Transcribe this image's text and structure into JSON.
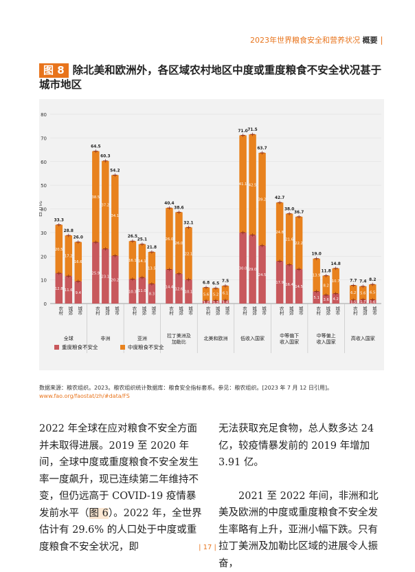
{
  "header": {
    "title": "2023年世界粮食安全和营养状况",
    "section": "概要"
  },
  "figure": {
    "badge": "图 8",
    "title": "除北美和欧洲外，各区域农村地区中度或重度粮食不安全状况甚于城市地区"
  },
  "colors": {
    "severe": "#c8585c",
    "moderate": "#e8821e",
    "total_marker": "#8b2c1a",
    "accent": "#e8741c"
  },
  "chart_data": {
    "type": "bar",
    "stacked": true,
    "ylabel": "百分比",
    "ylim": [
      0,
      80
    ],
    "yticks": [
      0,
      10,
      20,
      30,
      40,
      50,
      60,
      70,
      80
    ],
    "grid": true,
    "subcategories": [
      "农村",
      "城郊",
      "城市"
    ],
    "groups": [
      {
        "name": "全球",
        "severe": [
          12.8,
          11.6,
          9.4
        ],
        "moderate": [
          20.5,
          17.2,
          16.6
        ],
        "total": [
          33.3,
          28.8,
          26.0
        ]
      },
      {
        "name": "非洲",
        "severe": [
          25.9,
          23.1,
          20.2
        ],
        "moderate": [
          38.5,
          37.2,
          34.1
        ],
        "total": [
          64.5,
          60.3,
          54.2
        ]
      },
      {
        "name": "亚洲",
        "severe": [
          10.3,
          11.0,
          8.3
        ],
        "moderate": [
          16.1,
          14.1,
          13.5
        ],
        "total": [
          26.5,
          25.1,
          21.8
        ]
      },
      {
        "name": "拉丁美洲及加勒比",
        "severe": [
          14.4,
          12.6,
          10.1
        ],
        "moderate": [
          26.0,
          26.0,
          22.1
        ],
        "total": [
          40.4,
          38.6,
          32.1
        ]
      },
      {
        "name": "北美和欧洲",
        "severe": [
          1.2,
          1.3,
          1.4
        ],
        "moderate": [
          5.6,
          5.2,
          6.1
        ],
        "total": [
          6.8,
          6.5,
          7.5
        ]
      },
      {
        "name": "低收入国家",
        "severe": [
          30.0,
          29.0,
          24.5
        ],
        "moderate": [
          41.1,
          42.5,
          39.2
        ],
        "total": [
          71.0,
          71.5,
          63.7
        ]
      },
      {
        "name": "中等偏下收入国家",
        "severe": [
          17.9,
          16.4,
          14.5
        ],
        "moderate": [
          24.8,
          21.6,
          22.2
        ],
        "total": [
          42.7,
          38.0,
          36.7
        ]
      },
      {
        "name": "中等偏上收入国家",
        "severe": [
          5.1,
          3.6,
          4.2
        ],
        "moderate": [
          13.9,
          8.2,
          10.7
        ],
        "total": [
          19.0,
          11.8,
          14.8
        ]
      },
      {
        "name": "高收入国家",
        "severe": [
          1.5,
          1.7,
          1.6
        ],
        "moderate": [
          6.2,
          5.6,
          6.5
        ],
        "total": [
          7.7,
          7.4,
          8.2
        ]
      }
    ],
    "legend": {
      "position": "bottom-left",
      "items": [
        "重度粮食不安全",
        "中度粮食不安全"
      ]
    }
  },
  "notes": {
    "text": "数据来源：粮农组织。2023。粮农组织统计数据库：粮食安全指标套系。参见：粮农组织。[2023 年 7 月 12 日引用]。",
    "url": "www.fao.org/faostat/zh/#data/FS"
  },
  "body": {
    "left_1": "2022 年全球在应对粮食不安全方面并未取得进展。2019 至 2020 年间，全球中度或重度粮食不安全发生率一度飙升，现已连续第二年维持不变，但仍远高于 COVID-19 疫情暴发前水平（",
    "left_link": "图 6",
    "left_2": "）。2022 年，全世界估计有 29.6% 的人口处于中度或重度粮食不安全状况，即",
    "right_p1": "无法获取充足食物，总人数多达 24 亿，较疫情暴发前的 2019 年增加 3.91 亿。",
    "right_p2": "2021 至 2022 年间，非洲和北美及欧洲的中度或重度粮食不安全发生率略有上升，亚洲小幅下跌。只有拉丁美洲及加勒比区域的进展令人振奋，"
  },
  "page": {
    "number": "| 17 |"
  }
}
